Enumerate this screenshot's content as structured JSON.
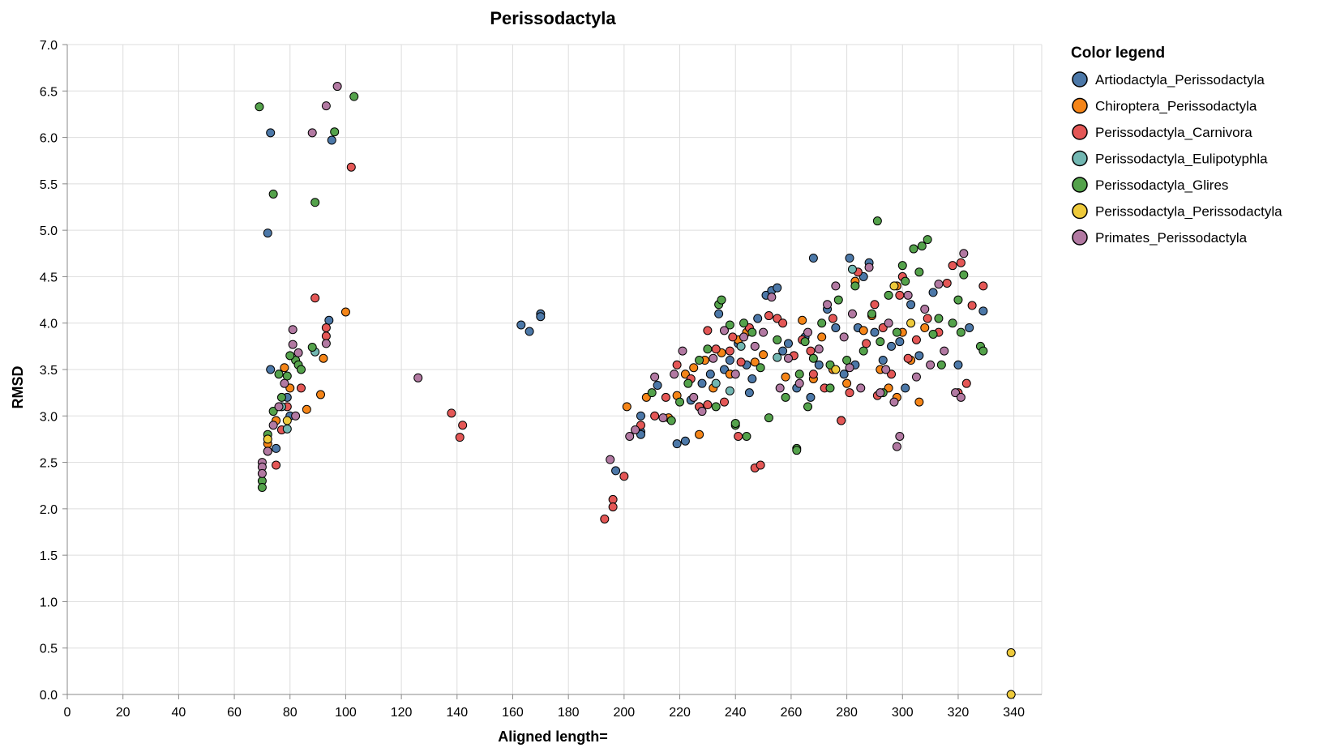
{
  "chart_data": {
    "type": "scatter",
    "title": "Perissodactyla",
    "xlabel": "Aligned length=",
    "ylabel": "RMSD",
    "xlim": [
      0,
      350
    ],
    "ylim": [
      0,
      7.0
    ],
    "x_ticks": [
      "0",
      "20",
      "40",
      "60",
      "80",
      "100",
      "120",
      "140",
      "160",
      "180",
      "200",
      "220",
      "240",
      "260",
      "280",
      "300",
      "320",
      "340"
    ],
    "y_ticks": [
      "0.0",
      "0.5",
      "1.0",
      "1.5",
      "2.0",
      "2.5",
      "3.0",
      "3.5",
      "4.0",
      "4.5",
      "5.0",
      "5.5",
      "6.0",
      "6.5",
      "7.0"
    ],
    "grid": true,
    "legend_title": "Color legend",
    "legend_position": "right",
    "series": [
      {
        "name": "Artiodactyla_Perissodactyla",
        "color": "#4c78a8",
        "points": [
          [
            73,
            6.05
          ],
          [
            95,
            5.97
          ],
          [
            72,
            4.97
          ],
          [
            94,
            4.03
          ],
          [
            73,
            3.5
          ],
          [
            79,
            3.2
          ],
          [
            80,
            3.0
          ],
          [
            75,
            2.65
          ],
          [
            163,
            3.98
          ],
          [
            166,
            3.91
          ],
          [
            170,
            4.1
          ],
          [
            170,
            4.07
          ],
          [
            197,
            2.41
          ],
          [
            206,
            2.83
          ],
          [
            206,
            2.8
          ],
          [
            206,
            3.0
          ],
          [
            212,
            3.33
          ],
          [
            219,
            2.7
          ],
          [
            222,
            2.73
          ],
          [
            224,
            3.17
          ],
          [
            228,
            3.35
          ],
          [
            231,
            3.45
          ],
          [
            234,
            4.1
          ],
          [
            238,
            3.6
          ],
          [
            241,
            3.78
          ],
          [
            244,
            3.55
          ],
          [
            246,
            3.4
          ],
          [
            248,
            4.05
          ],
          [
            251,
            4.3
          ],
          [
            253,
            4.35
          ],
          [
            255,
            4.38
          ],
          [
            257,
            3.7
          ],
          [
            259,
            3.78
          ],
          [
            262,
            3.3
          ],
          [
            265,
            3.85
          ],
          [
            268,
            4.7
          ],
          [
            270,
            3.55
          ],
          [
            273,
            4.15
          ],
          [
            276,
            3.95
          ],
          [
            279,
            3.45
          ],
          [
            281,
            4.7
          ],
          [
            283,
            3.55
          ],
          [
            286,
            4.5
          ],
          [
            288,
            4.65
          ],
          [
            290,
            3.9
          ],
          [
            293,
            3.6
          ],
          [
            296,
            3.75
          ],
          [
            299,
            3.8
          ],
          [
            303,
            4.2
          ],
          [
            306,
            3.65
          ],
          [
            311,
            4.33
          ],
          [
            320,
            3.55
          ],
          [
            324,
            3.95
          ],
          [
            329,
            4.13
          ],
          [
            245,
            3.25
          ],
          [
            236,
            3.5
          ],
          [
            227,
            3.1
          ],
          [
            267,
            3.2
          ],
          [
            284,
            3.95
          ],
          [
            301,
            3.3
          ]
        ]
      },
      {
        "name": "Chiroptera_Perissodactyla",
        "color": "#f58518",
        "points": [
          [
            100,
            4.12
          ],
          [
            92,
            3.62
          ],
          [
            91,
            3.23
          ],
          [
            86,
            3.07
          ],
          [
            78,
            3.52
          ],
          [
            80,
            3.3
          ],
          [
            72,
            2.7
          ],
          [
            75,
            2.95
          ],
          [
            201,
            3.1
          ],
          [
            208,
            3.2
          ],
          [
            216,
            2.98
          ],
          [
            219,
            3.22
          ],
          [
            222,
            3.45
          ],
          [
            225,
            3.52
          ],
          [
            227,
            2.8
          ],
          [
            229,
            3.6
          ],
          [
            232,
            3.3
          ],
          [
            235,
            3.68
          ],
          [
            238,
            3.45
          ],
          [
            241,
            3.82
          ],
          [
            244,
            3.9
          ],
          [
            247,
            3.58
          ],
          [
            250,
            3.66
          ],
          [
            258,
            3.42
          ],
          [
            264,
            4.03
          ],
          [
            268,
            3.4
          ],
          [
            271,
            3.85
          ],
          [
            275,
            3.5
          ],
          [
            280,
            3.35
          ],
          [
            283,
            4.45
          ],
          [
            286,
            3.92
          ],
          [
            289,
            4.08
          ],
          [
            292,
            3.5
          ],
          [
            295,
            3.3
          ],
          [
            298,
            4.4
          ],
          [
            300,
            3.9
          ],
          [
            303,
            3.6
          ],
          [
            306,
            3.15
          ],
          [
            308,
            3.95
          ],
          [
            298,
            3.2
          ]
        ]
      },
      {
        "name": "Perissodactyla_Carnivora",
        "color": "#e45756",
        "points": [
          [
            102,
            5.68
          ],
          [
            89,
            4.27
          ],
          [
            93,
            3.95
          ],
          [
            93,
            3.86
          ],
          [
            84,
            3.3
          ],
          [
            79,
            3.1
          ],
          [
            77,
            2.85
          ],
          [
            75,
            2.47
          ],
          [
            138,
            3.03
          ],
          [
            142,
            2.9
          ],
          [
            141,
            2.77
          ],
          [
            193,
            1.89
          ],
          [
            196,
            2.1
          ],
          [
            196,
            2.02
          ],
          [
            200,
            2.35
          ],
          [
            206,
            2.9
          ],
          [
            211,
            3.0
          ],
          [
            215,
            3.2
          ],
          [
            219,
            3.55
          ],
          [
            224,
            3.4
          ],
          [
            227,
            3.1
          ],
          [
            230,
            3.92
          ],
          [
            233,
            3.72
          ],
          [
            236,
            3.15
          ],
          [
            239,
            3.85
          ],
          [
            242,
            3.58
          ],
          [
            245,
            3.95
          ],
          [
            247,
            2.44
          ],
          [
            249,
            2.47
          ],
          [
            252,
            4.08
          ],
          [
            255,
            4.05
          ],
          [
            261,
            3.65
          ],
          [
            264,
            3.82
          ],
          [
            268,
            3.45
          ],
          [
            272,
            3.3
          ],
          [
            275,
            4.05
          ],
          [
            278,
            2.95
          ],
          [
            281,
            3.25
          ],
          [
            284,
            4.55
          ],
          [
            287,
            3.78
          ],
          [
            290,
            4.2
          ],
          [
            293,
            3.95
          ],
          [
            296,
            3.45
          ],
          [
            299,
            4.3
          ],
          [
            302,
            3.62
          ],
          [
            305,
            3.82
          ],
          [
            309,
            4.05
          ],
          [
            313,
            3.9
          ],
          [
            316,
            4.43
          ],
          [
            318,
            4.62
          ],
          [
            321,
            4.65
          ],
          [
            323,
            3.35
          ],
          [
            325,
            4.19
          ],
          [
            329,
            4.4
          ],
          [
            320,
            3.25
          ],
          [
            291,
            3.22
          ],
          [
            267,
            3.7
          ],
          [
            241,
            2.78
          ],
          [
            230,
            3.12
          ],
          [
            278,
            2.95
          ],
          [
            300,
            4.5
          ],
          [
            238,
            3.7
          ],
          [
            257,
            4.0
          ]
        ]
      },
      {
        "name": "Perissodactyla_Eulipotyphla",
        "color": "#72b7b2",
        "points": [
          [
            77,
            3.1
          ],
          [
            79,
            2.86
          ],
          [
            89,
            3.69
          ],
          [
            238,
            3.27
          ],
          [
            242,
            3.75
          ],
          [
            282,
            4.58
          ],
          [
            255,
            3.63
          ],
          [
            233,
            3.35
          ]
        ]
      },
      {
        "name": "Perissodactyla_Glires",
        "color": "#54a24b",
        "points": [
          [
            69,
            6.33
          ],
          [
            103,
            6.44
          ],
          [
            96,
            6.06
          ],
          [
            74,
            5.39
          ],
          [
            89,
            5.3
          ],
          [
            88,
            3.74
          ],
          [
            82,
            3.6
          ],
          [
            79,
            3.43
          ],
          [
            77,
            3.2
          ],
          [
            74,
            3.05
          ],
          [
            72,
            2.8
          ],
          [
            70,
            2.3
          ],
          [
            70,
            2.23
          ],
          [
            72,
            2.62
          ],
          [
            76,
            3.45
          ],
          [
            80,
            3.65
          ],
          [
            83,
            3.55
          ],
          [
            84,
            3.5
          ],
          [
            210,
            3.25
          ],
          [
            217,
            2.95
          ],
          [
            220,
            3.15
          ],
          [
            223,
            3.35
          ],
          [
            227,
            3.6
          ],
          [
            230,
            3.72
          ],
          [
            233,
            3.1
          ],
          [
            234,
            4.2
          ],
          [
            235,
            4.25
          ],
          [
            238,
            3.98
          ],
          [
            240,
            2.9
          ],
          [
            243,
            4.0
          ],
          [
            244,
            2.78
          ],
          [
            246,
            3.9
          ],
          [
            249,
            3.52
          ],
          [
            252,
            2.98
          ],
          [
            255,
            3.82
          ],
          [
            258,
            3.2
          ],
          [
            262,
            2.65
          ],
          [
            262,
            2.63
          ],
          [
            263,
            3.45
          ],
          [
            265,
            3.8
          ],
          [
            268,
            3.62
          ],
          [
            271,
            4.0
          ],
          [
            274,
            3.3
          ],
          [
            277,
            4.25
          ],
          [
            280,
            3.6
          ],
          [
            283,
            4.4
          ],
          [
            286,
            3.7
          ],
          [
            289,
            4.1
          ],
          [
            291,
            5.1
          ],
          [
            292,
            3.8
          ],
          [
            295,
            4.3
          ],
          [
            298,
            3.9
          ],
          [
            301,
            4.45
          ],
          [
            304,
            4.8
          ],
          [
            306,
            4.55
          ],
          [
            307,
            4.83
          ],
          [
            309,
            4.9
          ],
          [
            311,
            3.88
          ],
          [
            313,
            4.05
          ],
          [
            314,
            3.55
          ],
          [
            318,
            4.0
          ],
          [
            320,
            4.25
          ],
          [
            321,
            3.9
          ],
          [
            322,
            4.52
          ],
          [
            328,
            3.75
          ],
          [
            329,
            3.7
          ],
          [
            293,
            3.25
          ],
          [
            266,
            3.1
          ],
          [
            240,
            2.92
          ],
          [
            274,
            3.55
          ],
          [
            300,
            4.62
          ]
        ]
      },
      {
        "name": "Perissodactyla_Perissodactyla",
        "color": "#eeca3b",
        "points": [
          [
            72,
            2.75
          ],
          [
            79,
            2.95
          ],
          [
            276,
            3.5
          ],
          [
            297,
            4.4
          ],
          [
            303,
            4.0
          ],
          [
            339,
            0.45
          ],
          [
            339,
            0.0
          ]
        ]
      },
      {
        "name": "Primates_Perissodactyla",
        "color": "#b279a2",
        "points": [
          [
            97,
            6.55
          ],
          [
            93,
            6.34
          ],
          [
            88,
            6.05
          ],
          [
            81,
            3.93
          ],
          [
            81,
            3.77
          ],
          [
            83,
            3.68
          ],
          [
            82,
            3.0
          ],
          [
            93,
            3.78
          ],
          [
            78,
            3.35
          ],
          [
            76,
            3.1
          ],
          [
            74,
            2.9
          ],
          [
            72,
            2.62
          ],
          [
            70,
            2.5
          ],
          [
            70,
            2.45
          ],
          [
            70,
            2.38
          ],
          [
            126,
            3.41
          ],
          [
            195,
            2.53
          ],
          [
            202,
            2.78
          ],
          [
            204,
            2.85
          ],
          [
            211,
            3.42
          ],
          [
            214,
            2.98
          ],
          [
            218,
            3.45
          ],
          [
            221,
            3.7
          ],
          [
            225,
            3.2
          ],
          [
            228,
            3.05
          ],
          [
            232,
            3.62
          ],
          [
            236,
            3.92
          ],
          [
            240,
            3.45
          ],
          [
            243,
            3.85
          ],
          [
            247,
            3.75
          ],
          [
            250,
            3.9
          ],
          [
            253,
            4.28
          ],
          [
            256,
            3.3
          ],
          [
            259,
            3.62
          ],
          [
            263,
            3.35
          ],
          [
            266,
            3.9
          ],
          [
            270,
            3.72
          ],
          [
            273,
            4.2
          ],
          [
            276,
            4.4
          ],
          [
            279,
            3.85
          ],
          [
            282,
            4.1
          ],
          [
            285,
            3.3
          ],
          [
            288,
            4.6
          ],
          [
            292,
            3.25
          ],
          [
            294,
            3.5
          ],
          [
            297,
            3.15
          ],
          [
            299,
            2.78
          ],
          [
            298,
            2.67
          ],
          [
            302,
            4.3
          ],
          [
            305,
            3.42
          ],
          [
            308,
            4.15
          ],
          [
            310,
            3.55
          ],
          [
            313,
            4.42
          ],
          [
            315,
            3.7
          ],
          [
            319,
            3.25
          ],
          [
            321,
            3.2
          ],
          [
            322,
            4.75
          ],
          [
            295,
            4.0
          ],
          [
            281,
            3.52
          ]
        ]
      }
    ]
  }
}
